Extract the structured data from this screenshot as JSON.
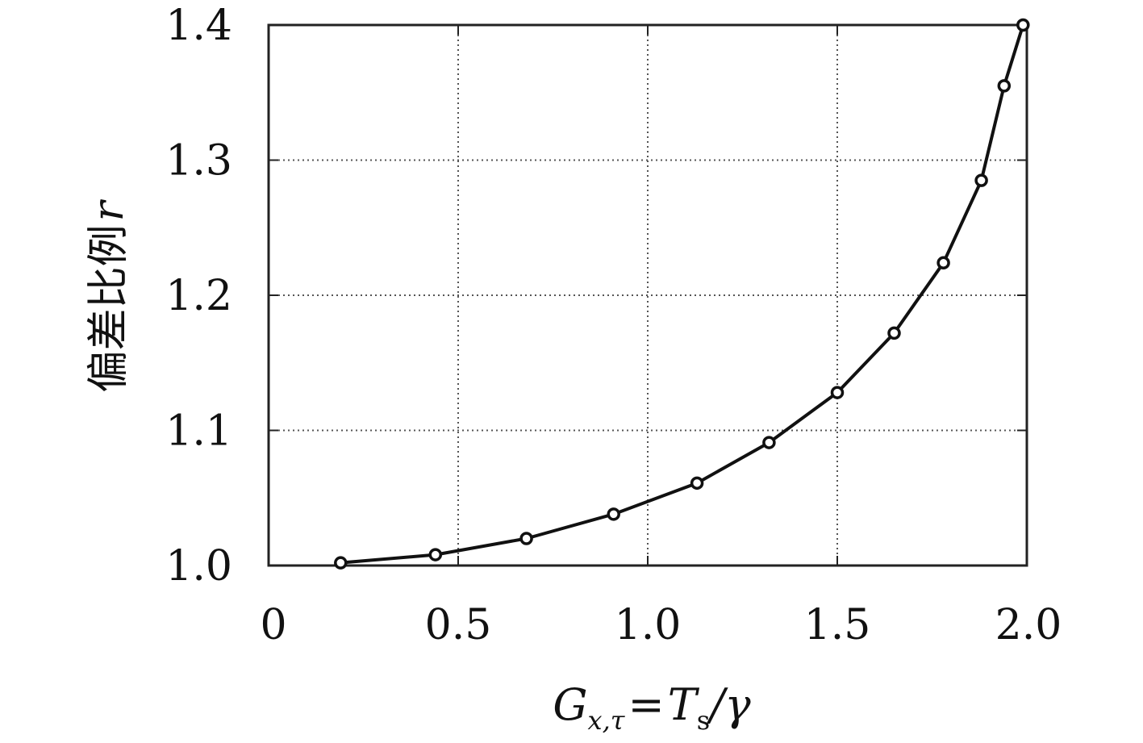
{
  "chart_data": {
    "type": "line",
    "title": "",
    "xlabel": {
      "main": "G",
      "sub": "x,τ",
      "equals": "=",
      "t": "T",
      "t_sub": "s",
      "rest": "/γ"
    },
    "ylabel": {
      "chinese": "偏差比例",
      "symbol": "r"
    },
    "xlim": [
      0,
      2.0
    ],
    "ylim": [
      1.0,
      1.4
    ],
    "xticks": [
      "0",
      "0.5",
      "1.0",
      "1.5",
      "2.0"
    ],
    "xtick_values": [
      0,
      0.5,
      1.0,
      1.5,
      2.0
    ],
    "yticks": [
      "1.0",
      "1.1",
      "1.2",
      "1.3",
      "1.4"
    ],
    "ytick_values": [
      1.0,
      1.1,
      1.2,
      1.3,
      1.4
    ],
    "grid": true,
    "legend": "none",
    "series": [
      {
        "x": [
          0.19,
          0.44,
          0.68,
          0.91,
          1.13,
          1.32,
          1.5,
          1.65,
          1.78,
          1.88,
          1.94,
          1.99
        ],
        "y": [
          1.002,
          1.008,
          1.02,
          1.038,
          1.061,
          1.091,
          1.128,
          1.172,
          1.224,
          1.285,
          1.355,
          1.4
        ],
        "color": "#111111",
        "marker": "open-circle"
      }
    ]
  }
}
